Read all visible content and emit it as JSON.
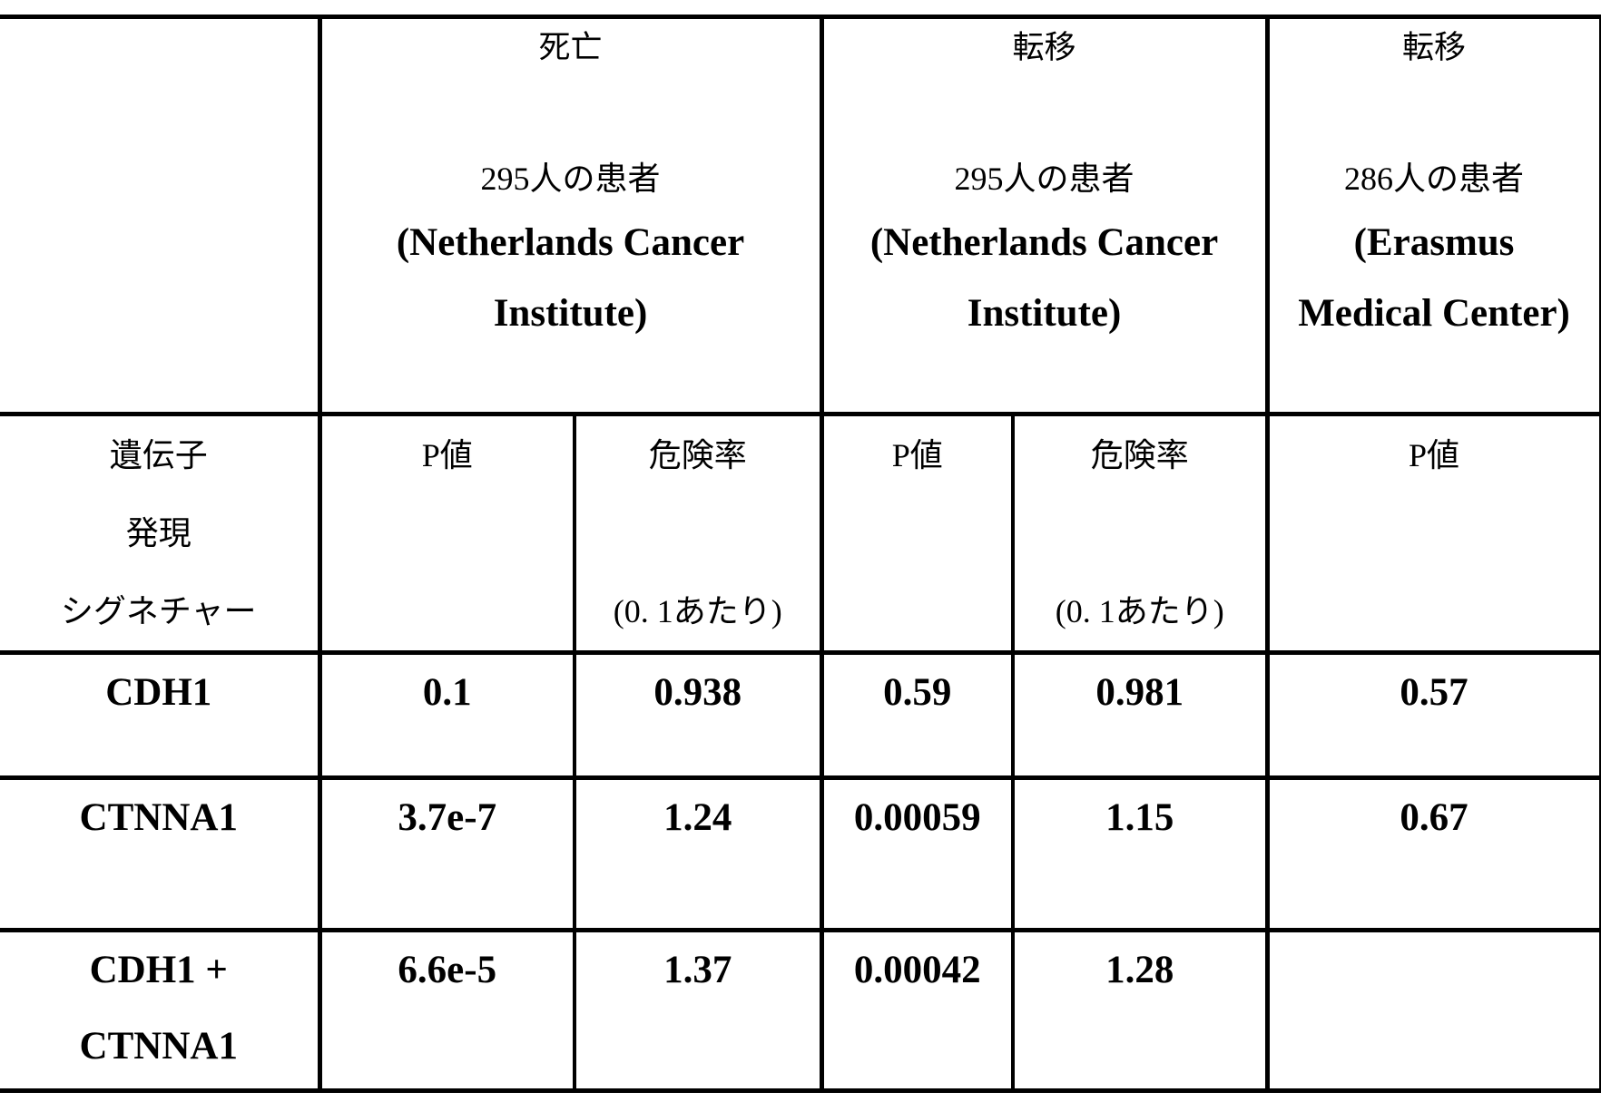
{
  "table": {
    "header": {
      "group1": {
        "event": "死亡",
        "patients": "295人の患者",
        "source_line1": "(Netherlands Cancer",
        "source_line2": "Institute)"
      },
      "group2": {
        "event": "転移",
        "patients": "295人の患者",
        "source_line1": "(Netherlands Cancer",
        "source_line2": "Institute)"
      },
      "group3": {
        "event": "転移",
        "patients": "286人の患者",
        "source_line1": "(Erasmus",
        "source_line2": "Medical Center)"
      }
    },
    "subheader": {
      "gene_col_line1": "遺伝子",
      "gene_col_line2": "発現",
      "gene_col_line3": "シグネチャー",
      "p_value": "P値",
      "hazard_line1": "危険率",
      "hazard_line2": "(0. 1あたり)"
    },
    "rows": [
      {
        "gene_line1": "CDH1",
        "gene_line2": "",
        "p1": "0.1",
        "hr1": "0.938",
        "p2": "0.59",
        "hr2": "0.981",
        "p3": "0.57"
      },
      {
        "gene_line1": "CTNNA1",
        "gene_line2": "",
        "p1": "3.7e-7",
        "hr1": "1.24",
        "p2": "0.00059",
        "hr2": "1.15",
        "p3": "0.67"
      },
      {
        "gene_line1": "CDH1 +",
        "gene_line2": "CTNNA1",
        "p1": "6.6e-5",
        "hr1": "1.37",
        "p2": "0.00042",
        "hr2": "1.28",
        "p3": ""
      }
    ]
  }
}
